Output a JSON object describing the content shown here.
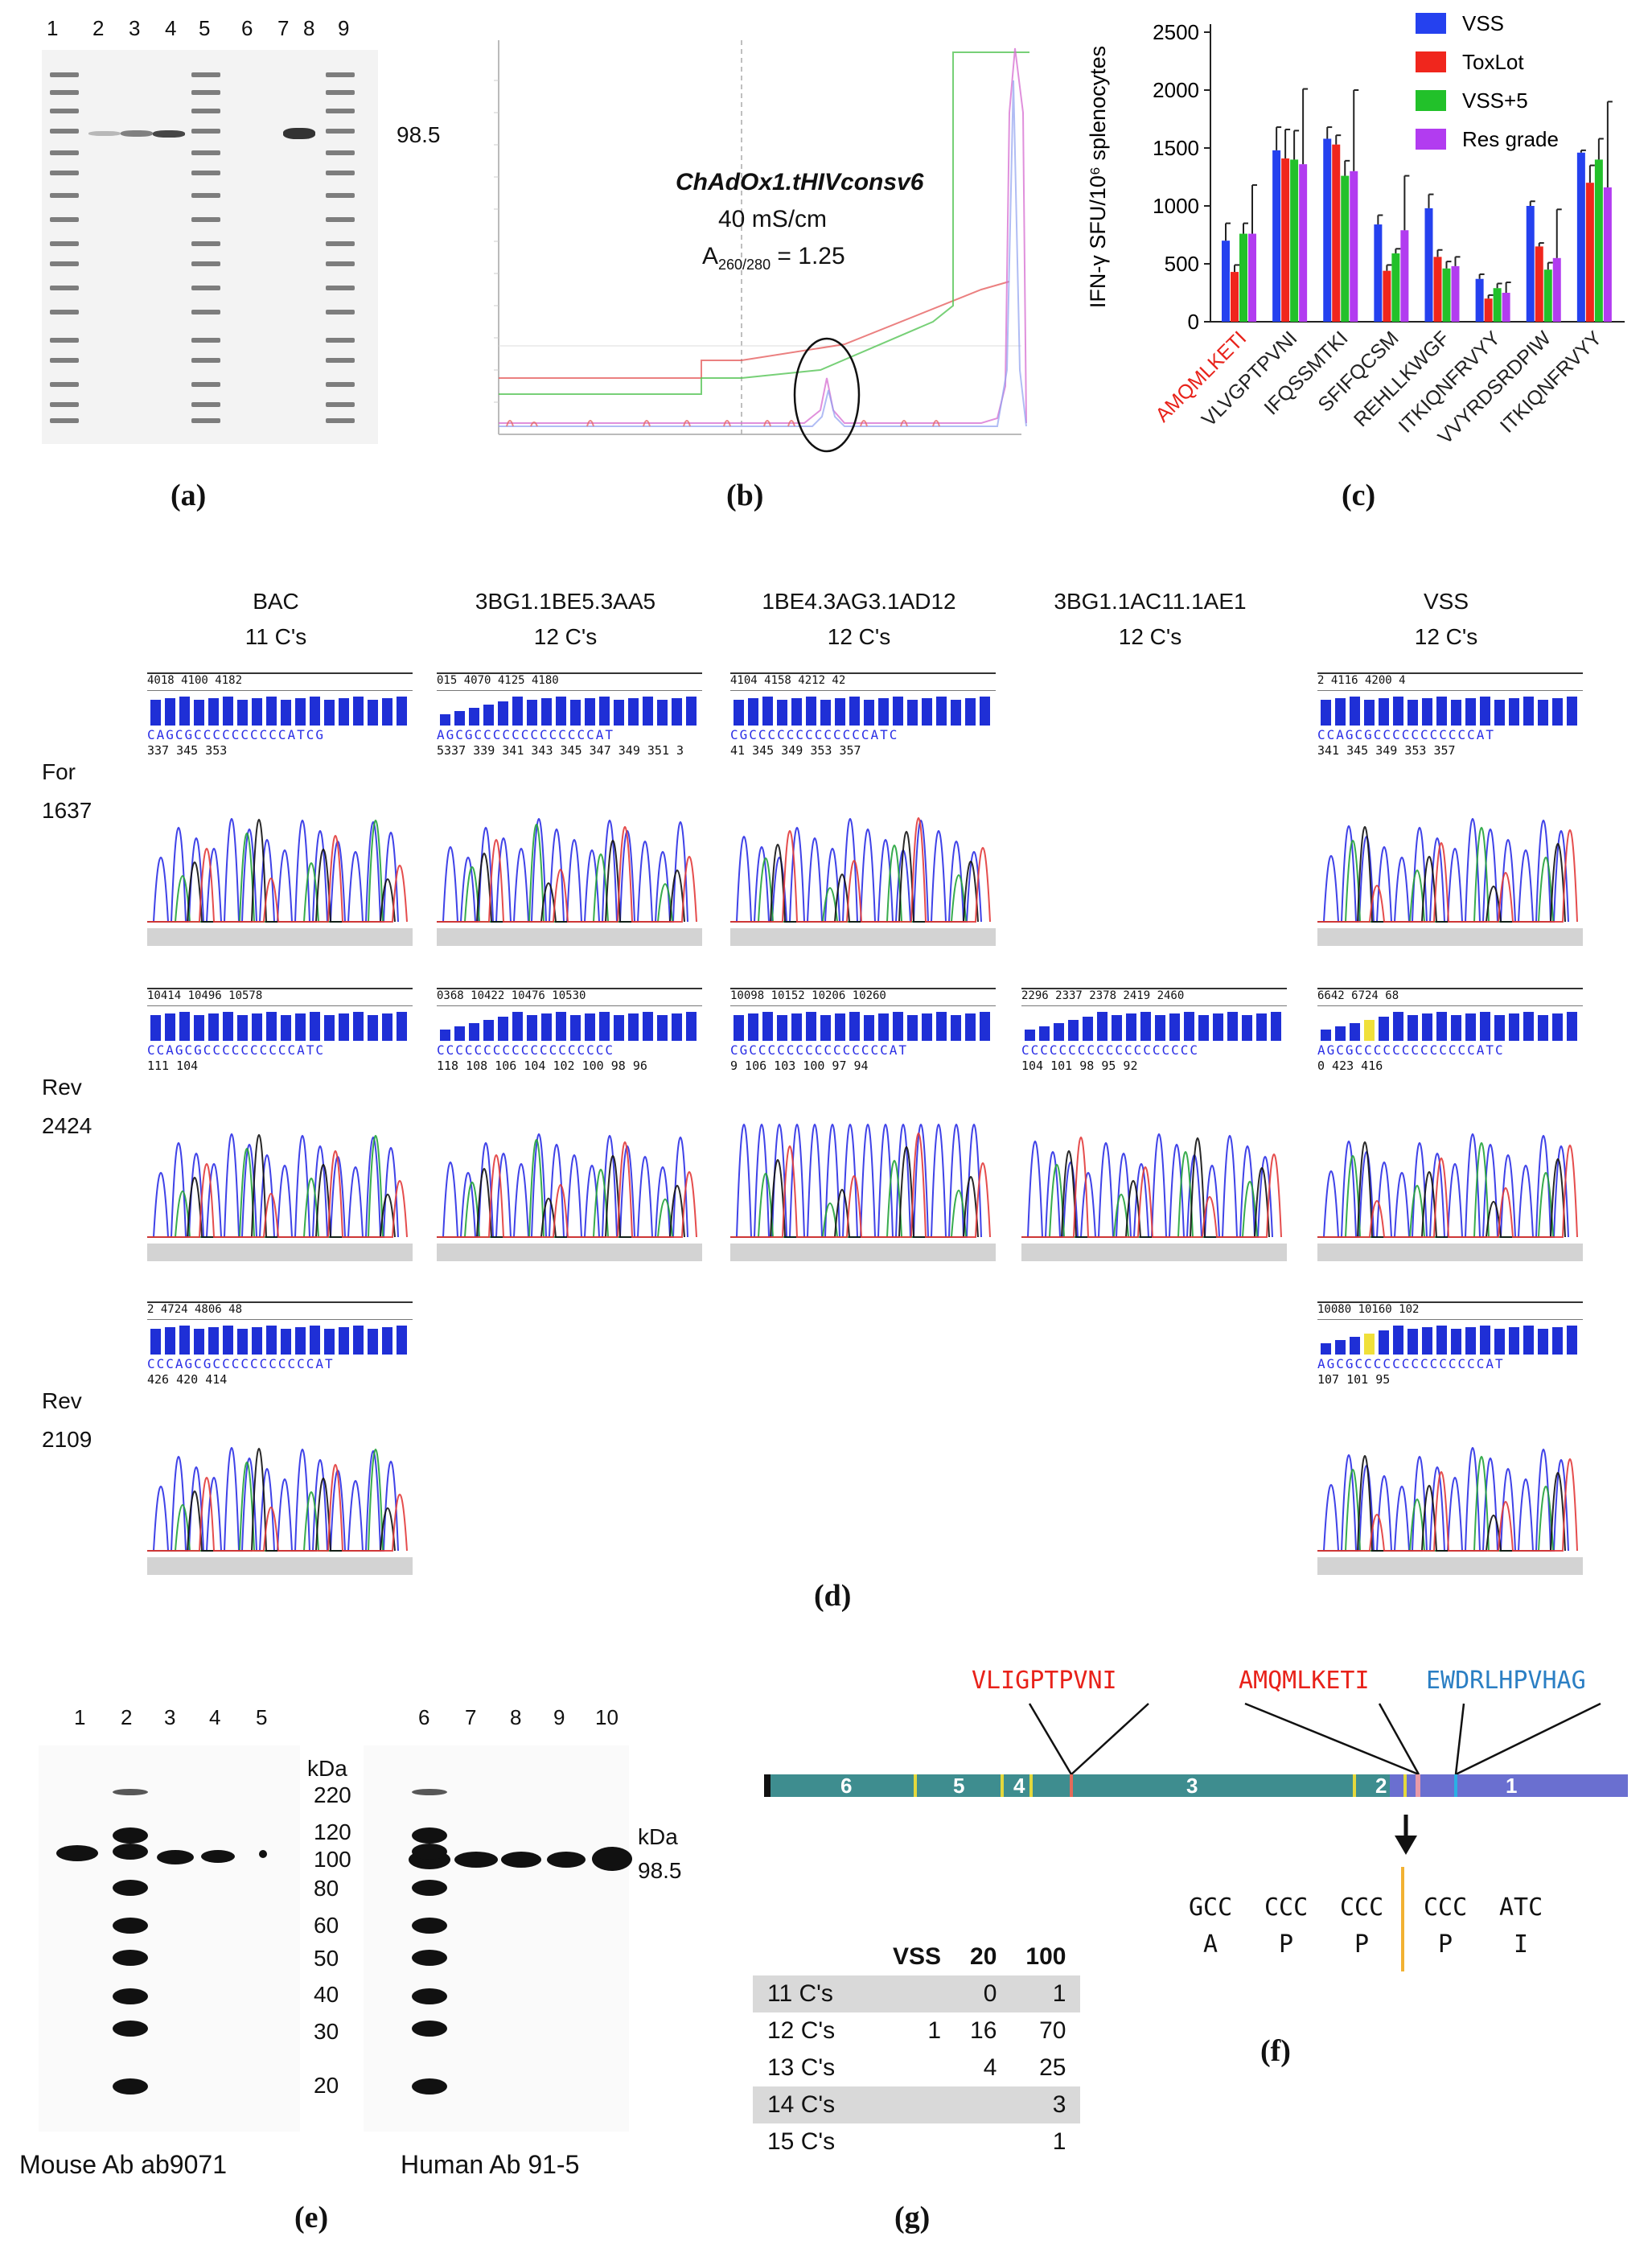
{
  "panel_labels": {
    "a": "(a)",
    "b": "(b)",
    "c": "(c)",
    "d": "(d)",
    "e": "(e)",
    "f": "(f)",
    "g": "(g)"
  },
  "panel_a": {
    "lanes": [
      "1",
      "2",
      "3",
      "4",
      "5",
      "6",
      "7",
      "8",
      "9"
    ],
    "mw_label": "98.5"
  },
  "panel_b": {
    "title": "ChAdOx1.tHIVconsv6",
    "conductivity": "40 mS/cm",
    "absorbance_label": "A",
    "absorbance_sub": "260/280",
    "absorbance_value": " = 1.25"
  },
  "chart_data": {
    "type": "bar",
    "ylabel": "IFN-γ SFU/10⁶ splenocytes",
    "ylim": [
      0,
      2500
    ],
    "yticks": [
      "0",
      "500",
      "1000",
      "1500",
      "2000",
      "2500"
    ],
    "categories": [
      "AMQMLKETI",
      "VLVGPTPVNI",
      "IFQSSMTKI",
      "SFIFQCSM",
      "REHLLKWGF",
      "ITKIQNFRVYY",
      "VVYRDSRDPIW",
      "ITKIQNFRVYY"
    ],
    "category_colors": [
      "#e8221a",
      "#222222",
      "#222222",
      "#222222",
      "#222222",
      "#222222",
      "#222222",
      "#222222"
    ],
    "series": [
      {
        "name": "VSS",
        "color": "#2541ef",
        "values": [
          700,
          1480,
          1580,
          840,
          980,
          370,
          1000,
          1460
        ],
        "errors": [
          150,
          200,
          100,
          80,
          120,
          40,
          40,
          20
        ]
      },
      {
        "name": "ToxLot",
        "color": "#f0261d",
        "values": [
          430,
          1410,
          1530,
          440,
          560,
          200,
          650,
          1200
        ],
        "errors": [
          60,
          250,
          80,
          50,
          60,
          30,
          30,
          150
        ]
      },
      {
        "name": "VSS+5",
        "color": "#22c12a",
        "values": [
          760,
          1400,
          1260,
          590,
          460,
          290,
          450,
          1400
        ],
        "errors": [
          90,
          250,
          130,
          40,
          60,
          40,
          60,
          180
        ]
      },
      {
        "name": "Res grade",
        "color": "#b23cf0",
        "values": [
          760,
          1360,
          1300,
          790,
          480,
          250,
          550,
          1160
        ],
        "errors": [
          420,
          650,
          700,
          470,
          80,
          90,
          420,
          740
        ]
      }
    ]
  },
  "panel_d": {
    "columns": [
      {
        "name": "BAC",
        "count": "11 C's"
      },
      {
        "name": "3BG1.1BE5.3AA5",
        "count": "12 C's"
      },
      {
        "name": "1BE4.3AG3.1AD12",
        "count": "12 C's"
      },
      {
        "name": "3BG1.1AC11.1AE1",
        "count": "12 C's"
      },
      {
        "name": "VSS",
        "count": "12 C's"
      }
    ],
    "rows": [
      {
        "line1": "For",
        "line2": "1637"
      },
      {
        "line1": "Rev",
        "line2": "2424"
      },
      {
        "line1": "Rev",
        "line2": "2109"
      }
    ],
    "traces": {
      "r0c0": {
        "ruler": "4018     4100      4182",
        "bases": "CAGCGCCCCCCCCCCATCG",
        "pos": "337       345       353"
      },
      "r0c1": {
        "ruler": "015  4070   4125   4180",
        "bases": "AGCGCCCCCCCCCCCCCAT",
        "pos": "5337 339 341 343 345 347 349 351 3"
      },
      "r0c2": {
        "ruler": "4104   4158   4212   42",
        "bases": "CGCCCCCCCCCCCCCATC",
        "pos": "41   345   349   353   357"
      },
      "r1c0": {
        "ruler": "10414  10496  10578",
        "bases": "CCAGCGCCCCCCCCCCATC",
        "pos": "     111       104"
      },
      "r1c1": {
        "ruler": "0368  10422  10476  10530",
        "bases": "CCCCCCCCCCCCCCCCCCC",
        "pos": "118 108 106 104 102 100 98 96"
      },
      "r1c2": {
        "ruler": "10098 10152 10206 10260",
        "bases": "CGCCCCCCCCCCCCCCCAT",
        "pos": "9  106   103   100   97   94"
      },
      "r1c3": {
        "ruler": "2296 2337 2378 2419 2460",
        "bases": "CCCCCCCCCCCCCCCCCCC",
        "pos": "  104   101   98   95   92"
      },
      "r2c0": {
        "ruler": "2   4724   4806   48",
        "bases": "CCCAGCGCCCCCCCCCCCAT",
        "pos": "  426     420     414"
      },
      "r0c4": {
        "ruler": "2   4116    4200   4",
        "bases": "CCAGCGCCCCCCCCCCCAT",
        "pos": "  341  345  349  353  357"
      },
      "r1c4": {
        "ruler": "6642      6724     68",
        "bases": "AGCGCCCCCCCCCCCCCATC",
        "pos": "0       423       416"
      },
      "r2c4": {
        "ruler": "10080   10160   102",
        "bases": "AGCGCCCCCCCCCCCCCCAT",
        "pos": "      107      101      95"
      }
    }
  },
  "panel_e": {
    "left_lanes": [
      "1",
      "2",
      "3",
      "4",
      "5"
    ],
    "right_lanes": [
      "6",
      "7",
      "8",
      "9",
      "10"
    ],
    "kda_top": "kDa",
    "markers": [
      "220",
      "120",
      "100",
      "80",
      "60",
      "50",
      "40",
      "30",
      "20"
    ],
    "kda_right": "kDa",
    "mw_right": "98.5",
    "left_caption": "Mouse Ab ab9071",
    "right_caption": "Human Ab 91-5"
  },
  "panel_f": {
    "epitopes": [
      {
        "text": "VLIGPTPVNI",
        "color": "#e8221a"
      },
      {
        "text": "AMQMLKETI",
        "color": "#e8221a"
      },
      {
        "text": "EWDRLHPVHAG",
        "color": "#2b7fc4"
      }
    ],
    "segments": [
      "6",
      "5",
      "4",
      "3",
      "2",
      "1"
    ],
    "codons": [
      "GCC",
      "CCC",
      "CCC",
      "CCC",
      "ATC"
    ],
    "amino_acids": [
      "A",
      "P",
      "P",
      "P",
      "I"
    ]
  },
  "panel_g": {
    "headers": [
      "",
      "VSS",
      "20",
      "100"
    ],
    "rows": [
      {
        "label": "11 C's",
        "vss": "",
        "c20": "0",
        "c100": "1",
        "shaded": true
      },
      {
        "label": "12 C's",
        "vss": "1",
        "c20": "16",
        "c100": "70",
        "shaded": false
      },
      {
        "label": "13 C's",
        "vss": "",
        "c20": "4",
        "c100": "25",
        "shaded": false
      },
      {
        "label": "14 C's",
        "vss": "",
        "c20": "",
        "c100": "3",
        "shaded": true
      },
      {
        "label": "15 C's",
        "vss": "",
        "c20": "",
        "c100": "1",
        "shaded": false
      }
    ]
  }
}
